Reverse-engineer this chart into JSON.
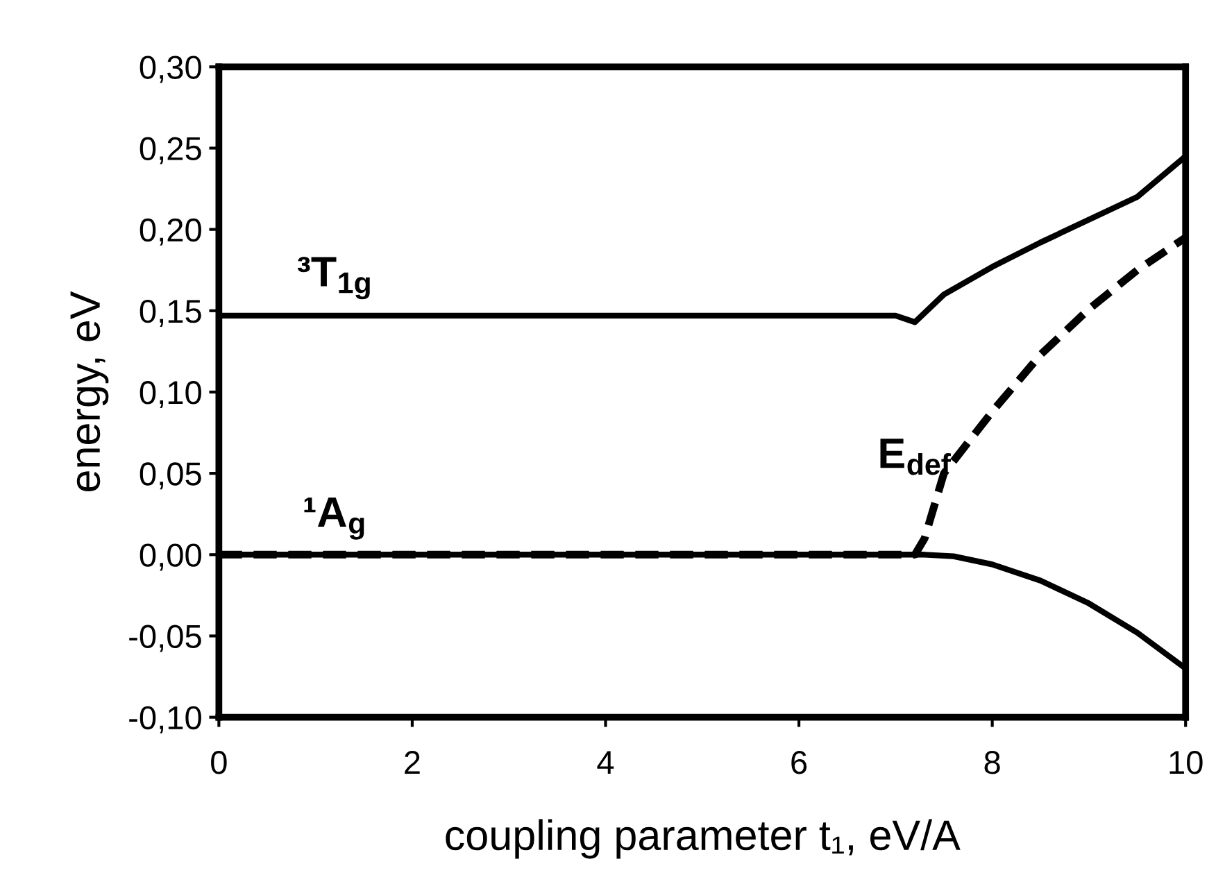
{
  "chart_data": {
    "type": "line",
    "xlabel": "coupling parameter t₁, eV/A",
    "ylabel": "energy, eV",
    "xlim": [
      0,
      10
    ],
    "ylim": [
      -0.1,
      0.3
    ],
    "xticks": [
      0,
      2,
      4,
      6,
      8,
      10
    ],
    "yticks": [
      {
        "value": -0.1,
        "label": "-0,10"
      },
      {
        "value": -0.05,
        "label": "-0,05"
      },
      {
        "value": 0,
        "label": "0,00"
      },
      {
        "value": 0.05,
        "label": "0,05"
      },
      {
        "value": 0.1,
        "label": "0,10"
      },
      {
        "value": 0.15,
        "label": "0,15"
      },
      {
        "value": 0.2,
        "label": "0,20"
      },
      {
        "value": 0.25,
        "label": "0,25"
      },
      {
        "value": 0.3,
        "label": "0,30"
      }
    ],
    "grid": false,
    "legend": false,
    "series": [
      {
        "color": "#000000",
        "line_style": "solid",
        "x": [
          0,
          7.0,
          7.2,
          7.5,
          8,
          8.5,
          9,
          9.5,
          10
        ],
        "values": [
          0.147,
          0.147,
          0.143,
          0.16,
          0.177,
          0.192,
          0.206,
          0.22,
          0.245
        ]
      },
      {
        "color": "#000000",
        "line_style": "solid",
        "x": [
          0,
          7.3,
          7.6,
          8,
          8.5,
          9,
          9.5,
          10
        ],
        "values": [
          0,
          0,
          -0.001,
          -0.006,
          -0.016,
          -0.03,
          -0.048,
          -0.07
        ]
      },
      {
        "color": "#000000",
        "line_style": "dashed",
        "x": [
          0,
          7.2,
          7.3,
          7.5,
          8,
          8.5,
          9,
          9.5,
          10
        ],
        "values": [
          0,
          0,
          0.01,
          0.05,
          0.088,
          0.123,
          0.151,
          0.175,
          0.195
        ]
      }
    ],
    "annotations": [
      "³T$_{1g}$",
      "¹A$_{g}$",
      "E$_{def}$"
    ]
  }
}
